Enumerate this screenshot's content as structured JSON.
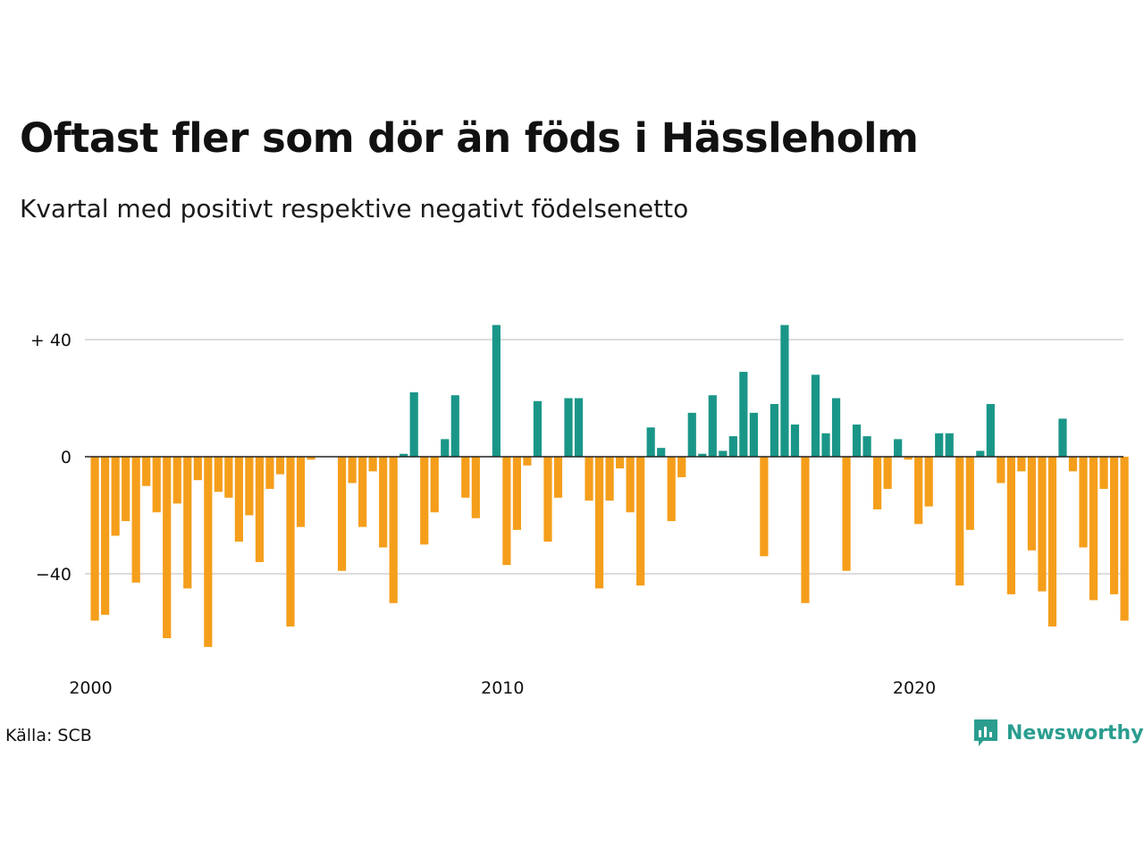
{
  "title": "Oftast fler som dör än föds i Hässleholm",
  "subtitle": "Kvartal med positivt respektive negativt födelsenetto",
  "source": "Källa: SCB",
  "brand": {
    "name": "Newsworthy",
    "icon": "newsworthy-chart-bubble-icon"
  },
  "colors": {
    "positive": "#1a9688",
    "negative": "#f59e1b",
    "grid": "#dddddd",
    "zero_line": "#222222",
    "brand": "#2a9d8f"
  },
  "chart_data": {
    "type": "bar",
    "x_start": "2000 Q1",
    "x_tick_labels": [
      "2000",
      "2010",
      "2020"
    ],
    "y_tick_labels": [
      "+ 40",
      "0",
      "−40"
    ],
    "y_ticks": [
      40,
      0,
      -40
    ],
    "ylim": [
      -70,
      45
    ],
    "grid": true,
    "series": [
      {
        "values": [
          -56,
          -54,
          -27,
          -22,
          -43,
          -10,
          -19,
          -62,
          -16,
          -45,
          -8,
          -65,
          -12,
          -14,
          -29,
          -20,
          -36,
          -11,
          -6,
          -58,
          -24,
          -1,
          0,
          0,
          -39,
          -9,
          -24,
          -5,
          -31,
          -50,
          1,
          22,
          -30,
          -19,
          6,
          21,
          -14,
          -21,
          0,
          45,
          -37,
          -25,
          -3,
          19,
          -29,
          -14,
          20,
          20,
          -15,
          -45,
          -15,
          -4,
          -19,
          -44,
          10,
          3,
          -22,
          -7,
          15,
          1,
          21,
          2,
          7,
          29,
          15,
          -34,
          18,
          45,
          11,
          -50,
          28,
          8,
          20,
          -39,
          11,
          7,
          -18,
          -11,
          6,
          -1,
          -23,
          -17,
          8,
          8,
          -44,
          -25,
          2,
          18,
          -9,
          -47,
          -5,
          -32,
          -46,
          -58,
          13,
          -5,
          -31,
          -49,
          -11,
          -47,
          -56
        ]
      }
    ]
  }
}
